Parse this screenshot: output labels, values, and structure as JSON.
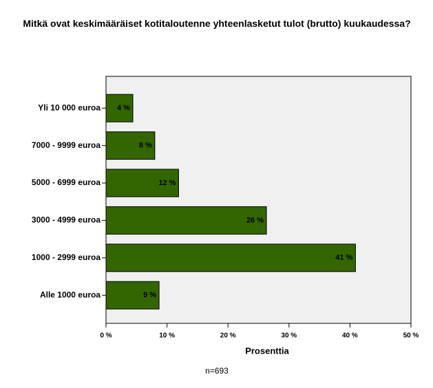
{
  "chart_data": {
    "type": "bar",
    "orientation": "horizontal",
    "title": "Mitkä ovat keskimääräiset kotitaloutenne yhteenlasketut tulot (brutto) kuukaudessa?",
    "categories": [
      "Yli 10 000 euroa",
      "7000 - 9999 euroa",
      "5000 - 6999 euroa",
      "3000 - 4999 euroa",
      "1000 - 2999 euroa",
      "Alle 1000 euroa"
    ],
    "values": [
      4.4,
      8.0,
      11.9,
      26.3,
      40.9,
      8.7
    ],
    "value_labels": [
      "4 %",
      "8 %",
      "12 %",
      "26 %",
      "41 %",
      "9 %"
    ],
    "color": "#336600",
    "xlabel": "Prosenttia",
    "note": "n=693",
    "xlim": [
      0,
      50
    ],
    "xticks": [
      {
        "value": 0,
        "label": "0 %"
      },
      {
        "value": 10,
        "label": "10 %"
      },
      {
        "value": 20,
        "label": "20 %"
      },
      {
        "value": 30,
        "label": "30 %"
      },
      {
        "value": 40,
        "label": "40 %"
      },
      {
        "value": 50,
        "label": "50 %"
      }
    ],
    "grid": false
  }
}
